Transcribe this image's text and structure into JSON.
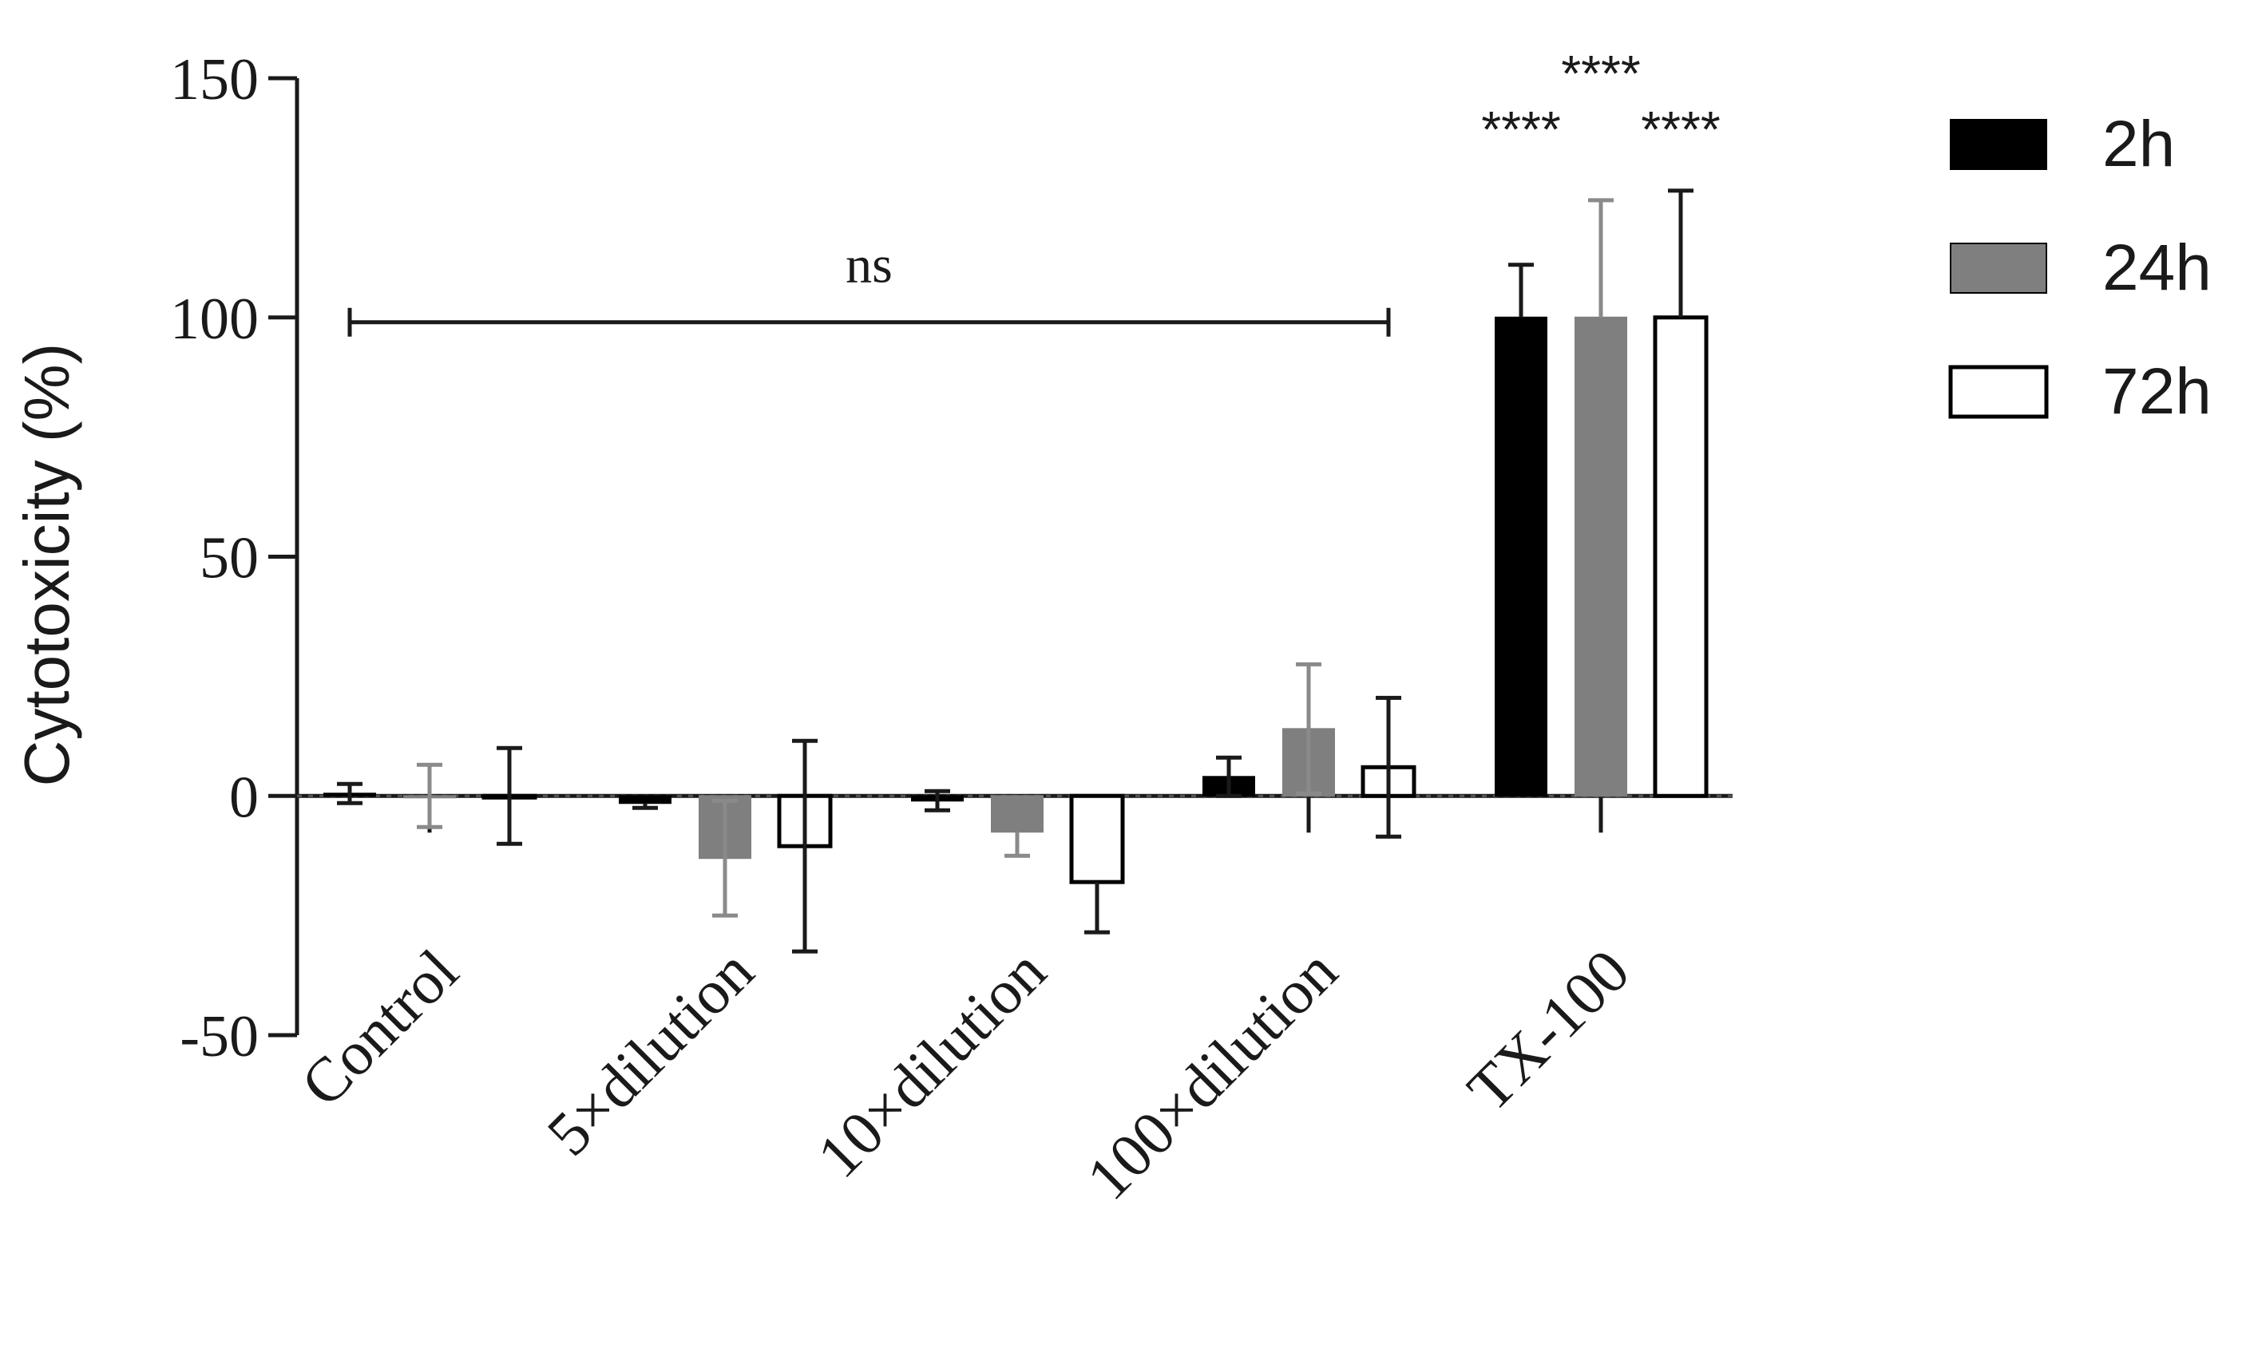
{
  "chart_data": {
    "type": "bar",
    "title": "",
    "xlabel": "",
    "ylabel": "Cytotoxicity (%)",
    "ylim": [
      -50,
      150
    ],
    "yticks": [
      -50,
      0,
      50,
      100,
      150
    ],
    "categories": [
      "Control",
      "5×dilution",
      "10×dilution",
      "100×dilution",
      "TX-100"
    ],
    "series": [
      {
        "name": "2h",
        "color": "#000000",
        "fill": "solid",
        "values": [
          0.5,
          -1.5,
          -1,
          4,
          100
        ],
        "errors": [
          2,
          1,
          2,
          4,
          11
        ]
      },
      {
        "name": "24h",
        "color": "#7f7f7f",
        "fill": "solid",
        "values": [
          0,
          -13,
          -7.5,
          14,
          100
        ],
        "errors": [
          6.5,
          12,
          5,
          13.5,
          24.5
        ]
      },
      {
        "name": "72h",
        "color": "#ffffff",
        "fill": "outline",
        "values": [
          0,
          -10.5,
          -18,
          6,
          100
        ],
        "errors": [
          10,
          22,
          10.5,
          14.5,
          26.5
        ]
      }
    ],
    "legend_position": "top-right",
    "annotations": {
      "ns_label": "ns",
      "ns_span": [
        "Control",
        "100×dilution"
      ],
      "ns_y": 99,
      "significance": [
        {
          "category": "TX-100",
          "series": "2h",
          "label": "****"
        },
        {
          "category": "TX-100",
          "series": "24h",
          "label": "****"
        },
        {
          "category": "TX-100",
          "series": "72h",
          "label": "****"
        }
      ]
    }
  }
}
